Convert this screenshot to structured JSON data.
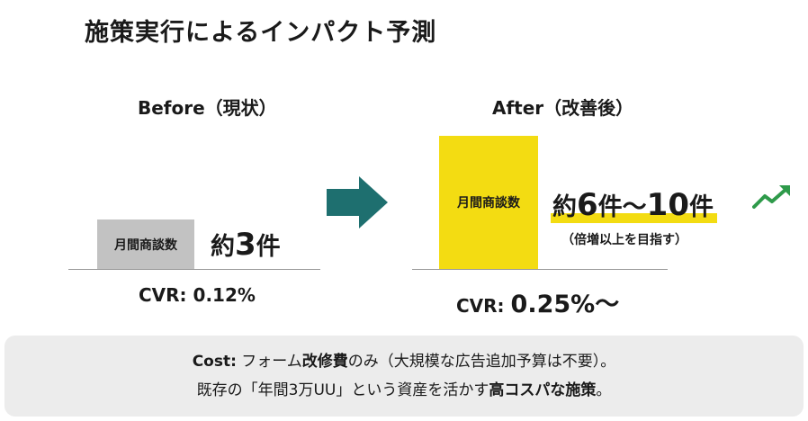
{
  "title": "施策実行によるインパクト予測",
  "before": {
    "heading": "Before（現状）",
    "bar_label": "月間商談数",
    "value_prefix": "約",
    "value_num": "3",
    "value_unit": "件",
    "cvr_label": "CVR:",
    "cvr_value": "0.12%"
  },
  "after": {
    "heading": "After（改善後）",
    "bar_label": "月間商談数",
    "value_prefix": "約",
    "value_num_from": "6",
    "value_unit_from": "件〜",
    "value_num_to": "10",
    "value_unit_to": "件",
    "note": "（倍増以上を目指す）",
    "cvr_label": "CVR:",
    "cvr_value": "0.25%〜"
  },
  "icons": {
    "transition": "right-arrow-icon",
    "growth": "trend-up-icon"
  },
  "colors": {
    "accent_yellow": "#f3dc12",
    "before_gray": "#c2c2c2",
    "arrow_teal": "#1e6f6f",
    "trend_green": "#2e9a4a",
    "cost_background": "#ececec"
  },
  "cost": {
    "label": "Cost:",
    "line1_a": "フォーム",
    "line1_bold": "改修費",
    "line1_b": "のみ（大規模な広告追加予算は不要）。",
    "line2_a": "既存の「年間3万UU」という資産を活かす",
    "line2_bold": "高コスパな施策",
    "line2_b": "。"
  }
}
